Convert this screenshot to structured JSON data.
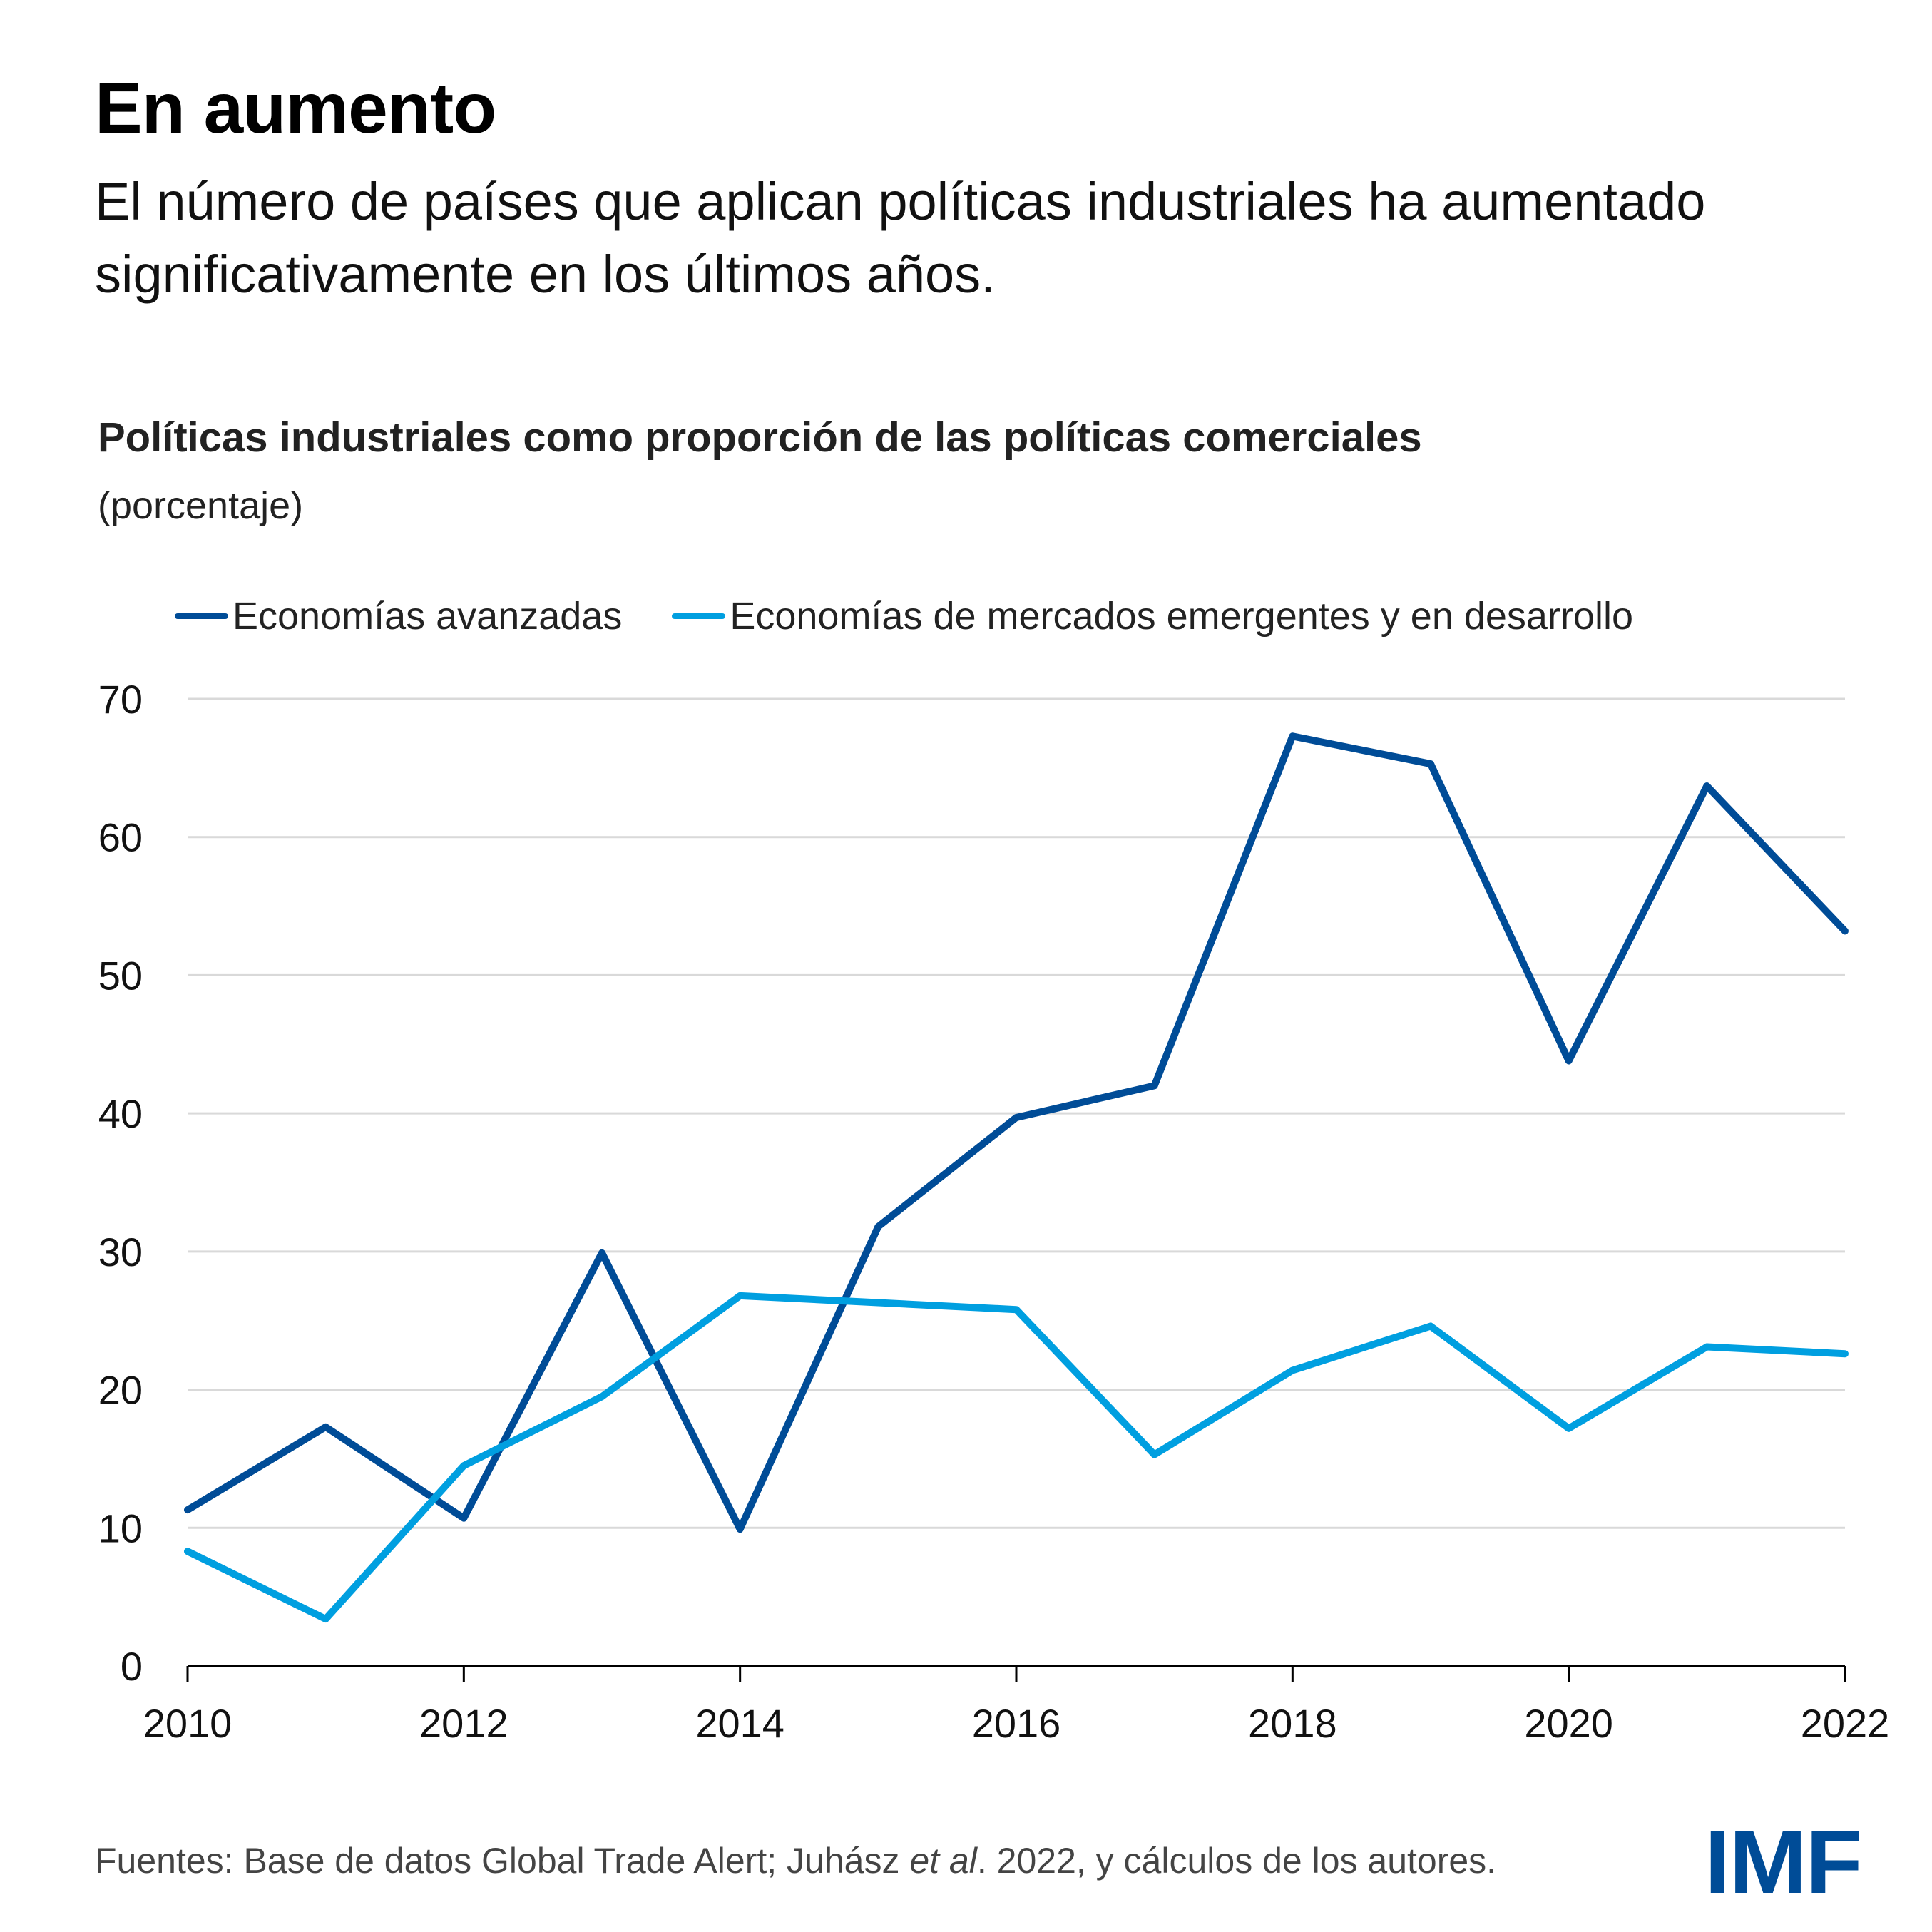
{
  "header": {
    "title": "En aumento",
    "subtitle": "El número de países que aplican políticas industriales ha aumentado significativamente en los últimos años."
  },
  "footer": {
    "source_prefix": "Fuentes: Base de datos Global Trade Alert; Juhász ",
    "source_italic": "et al",
    "source_suffix": ". 2022, y cálculos de los autores.",
    "logo": "IMF"
  },
  "colors": {
    "advanced": "#004c97",
    "emerging": "#009fe0",
    "grid": "#d9d9d9",
    "logo": "#004c97"
  },
  "chart_data": {
    "type": "line",
    "title": "Políticas industriales como proporción de las políticas comerciales",
    "unit": "(porcentaje)",
    "xlabel": "",
    "ylabel": "",
    "x": [
      2010,
      2011,
      2012,
      2013,
      2014,
      2015,
      2016,
      2017,
      2018,
      2019,
      2020,
      2021,
      2022
    ],
    "x_ticks": [
      "2010",
      "2012",
      "2014",
      "2016",
      "2018",
      "2020",
      "2022"
    ],
    "y_ticks": [
      "0",
      "10",
      "20",
      "30",
      "40",
      "50",
      "60",
      "70"
    ],
    "ylim": [
      0,
      70
    ],
    "xlim": [
      2010,
      2022
    ],
    "grid": true,
    "legend_position": "top",
    "series": [
      {
        "name": "Economías avanzadas",
        "color": "#004c97",
        "values": [
          11.3,
          17.3,
          10.7,
          29.9,
          9.9,
          31.8,
          39.7,
          42.0,
          67.3,
          65.3,
          43.8,
          63.7,
          53.2
        ]
      },
      {
        "name": "Economías de mercados emergentes y en desarrollo",
        "color": "#009fe0",
        "values": [
          8.3,
          3.4,
          14.5,
          19.5,
          26.8,
          26.3,
          25.8,
          15.3,
          21.4,
          24.6,
          17.2,
          23.1,
          22.6
        ]
      }
    ]
  }
}
